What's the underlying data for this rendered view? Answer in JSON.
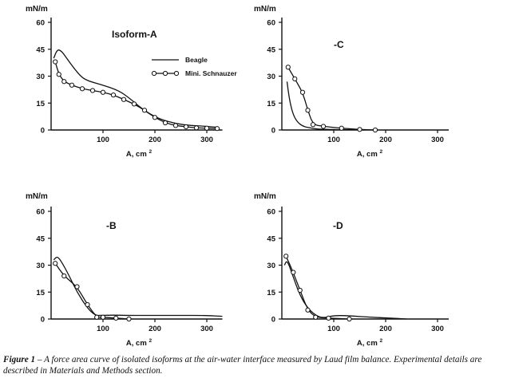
{
  "caption": {
    "label": "Figure 1",
    "text": " – A force area curve of isolated isoforms at the air-water interface measured by Laud film balance. Experimental details are described in Materials and Methods section."
  },
  "legend": {
    "series": [
      "Beagle",
      "Mini. Schnauzer"
    ]
  },
  "chart_data": [
    {
      "type": "line",
      "title": "Isoform-A",
      "ylabel": "mN/m",
      "xlabel": "A, cm",
      "xlabel_sup": "2",
      "ylim": [
        0,
        60
      ],
      "xlim": [
        0,
        330
      ],
      "yticks": [
        0,
        15,
        30,
        45,
        60
      ],
      "xticks": [
        100,
        200,
        300
      ],
      "series": [
        {
          "name": "Beagle",
          "marker": "none",
          "x": [
            5,
            12,
            20,
            30,
            45,
            60,
            75,
            100,
            130,
            150,
            170,
            190,
            210,
            240,
            270,
            300,
            322
          ],
          "y": [
            40,
            45,
            44,
            40,
            34,
            29,
            27,
            25,
            22,
            18,
            13,
            9,
            6,
            3.5,
            2.5,
            2,
            1.5
          ]
        },
        {
          "name": "Mini. Schnauzer",
          "marker": "circle",
          "x": [
            8,
            15,
            25,
            40,
            60,
            80,
            100,
            120,
            140,
            160,
            180,
            200,
            220,
            240,
            260,
            280,
            300,
            320
          ],
          "y": [
            38,
            31,
            27,
            25,
            23,
            22,
            21,
            19.5,
            17,
            14.5,
            11,
            7,
            4,
            2.5,
            1.8,
            1.2,
            1,
            0.8
          ]
        }
      ]
    },
    {
      "type": "line",
      "title": "-C",
      "ylabel": "mN/m",
      "xlabel": "A, cm",
      "xlabel_sup": "2",
      "ylim": [
        0,
        60
      ],
      "xlim": [
        0,
        330
      ],
      "yticks": [
        0,
        15,
        30,
        45,
        60
      ],
      "xticks": [
        100,
        200,
        300
      ],
      "series": [
        {
          "name": "Beagle",
          "marker": "none",
          "x": [
            10,
            14,
            20,
            28,
            40,
            60,
            80,
            120,
            160
          ],
          "y": [
            27,
            18,
            10,
            5,
            2,
            0.8,
            0.3,
            0.2,
            0
          ]
        },
        {
          "name": "Mini. Schnauzer",
          "marker": "circle",
          "x": [
            12,
            25,
            40,
            50,
            60,
            80,
            115,
            150,
            180
          ],
          "y": [
            35,
            28.5,
            21,
            11,
            3,
            2,
            1,
            0.3,
            0
          ]
        }
      ]
    },
    {
      "type": "line",
      "title": "-B",
      "ylabel": "mN/m",
      "xlabel": "A, cm",
      "xlabel_sup": "2",
      "ylim": [
        0,
        60
      ],
      "xlim": [
        0,
        330
      ],
      "yticks": [
        0,
        15,
        30,
        45,
        60
      ],
      "xticks": [
        100,
        200,
        300
      ],
      "series": [
        {
          "name": "Beagle",
          "marker": "none",
          "x": [
            5,
            12,
            20,
            35,
            50,
            70,
            85,
            95,
            120,
            150,
            200,
            250,
            300,
            330
          ],
          "y": [
            33,
            35,
            32,
            24,
            15,
            6,
            2,
            2,
            2.2,
            2,
            2,
            2,
            2,
            1.5
          ]
        },
        {
          "name": "Mini. Schnauzer",
          "marker": "circle",
          "x": [
            8,
            25,
            50,
            70,
            88,
            100,
            125,
            150
          ],
          "y": [
            31,
            24,
            18,
            8,
            1,
            1,
            0.5,
            0
          ]
        }
      ]
    },
    {
      "type": "line",
      "title": "-D",
      "ylabel": "mN/m",
      "xlabel": "A, cm",
      "xlabel_sup": "2",
      "ylim": [
        0,
        60
      ],
      "xlim": [
        0,
        330
      ],
      "yticks": [
        0,
        15,
        30,
        45,
        60
      ],
      "xticks": [
        100,
        200,
        300
      ],
      "series": [
        {
          "name": "Beagle",
          "marker": "none",
          "x": [
            5,
            10,
            20,
            35,
            50,
            65,
            80,
            100,
            130,
            170,
            210,
            240
          ],
          "y": [
            30,
            33,
            25,
            13,
            6,
            2,
            0.5,
            2,
            1.8,
            1,
            0.5,
            0
          ]
        },
        {
          "name": "Mini. Schnauzer",
          "marker": "circle",
          "x": [
            8,
            22,
            35,
            50,
            65,
            90,
            130
          ],
          "y": [
            35,
            26,
            16,
            5,
            1,
            0.5,
            0
          ]
        }
      ]
    }
  ]
}
